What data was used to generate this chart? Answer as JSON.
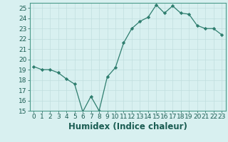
{
  "x": [
    0,
    1,
    2,
    3,
    4,
    5,
    6,
    7,
    8,
    9,
    10,
    11,
    12,
    13,
    14,
    15,
    16,
    17,
    18,
    19,
    20,
    21,
    22,
    23
  ],
  "y": [
    19.3,
    19.0,
    19.0,
    18.7,
    18.1,
    17.6,
    14.9,
    16.4,
    15.0,
    18.3,
    19.2,
    21.6,
    23.0,
    23.7,
    24.1,
    25.3,
    24.5,
    25.2,
    24.5,
    24.4,
    23.3,
    23.0,
    23.0,
    22.4
  ],
  "xlim": [
    -0.5,
    23.5
  ],
  "ylim": [
    15,
    25.5
  ],
  "yticks": [
    15,
    16,
    17,
    18,
    19,
    20,
    21,
    22,
    23,
    24,
    25
  ],
  "xticks": [
    0,
    1,
    2,
    3,
    4,
    5,
    6,
    7,
    8,
    9,
    10,
    11,
    12,
    13,
    14,
    15,
    16,
    17,
    18,
    19,
    20,
    21,
    22,
    23
  ],
  "xlabel": "Humidex (Indice chaleur)",
  "line_color": "#2e7d6e",
  "marker": "D",
  "bg_color": "#d8f0f0",
  "grid_color": "#c0dede",
  "tick_fontsize": 6.5,
  "xlabel_fontsize": 8.5,
  "xlabel_color": "#1a5c52",
  "tick_color": "#1a5c52"
}
